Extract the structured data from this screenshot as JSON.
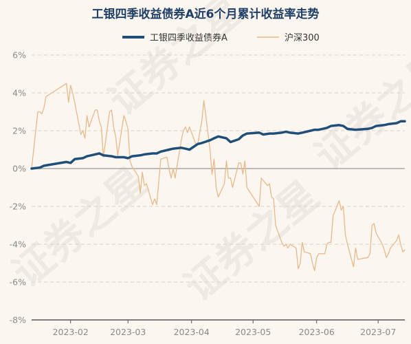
{
  "chart_data": {
    "type": "line",
    "title": "工银四季收益债券A近6个月累计收益率走势",
    "xlabel": "",
    "ylabel": "",
    "x_start": "2023-01-13",
    "x_end": "2023-07-14",
    "ylim": [
      -8,
      6
    ],
    "y_ticks": [
      6,
      4,
      2,
      0,
      -2,
      -4,
      -6,
      -8
    ],
    "y_tick_labels": [
      "6%",
      "4%",
      "2%",
      "0%",
      "-2%",
      "-4%",
      "-6%",
      "-8%"
    ],
    "x_ticks": [
      "2023-02-01",
      "2023-03-01",
      "2023-04-01",
      "2023-05-01",
      "2023-06-01",
      "2023-07-01"
    ],
    "x_tick_labels": [
      "2023-02",
      "2023-03",
      "2023-04",
      "2023-05",
      "2023-06",
      "2023-07"
    ],
    "grid": true,
    "legend": "top-center",
    "watermark": "证券之星",
    "series": [
      {
        "name": "工银四季收益债券A",
        "color": "#1f4e79",
        "x": [
          "2023-01-13",
          "2023-01-17",
          "2023-01-19",
          "2023-01-30",
          "2023-02-01",
          "2023-02-03",
          "2023-02-07",
          "2023-02-09",
          "2023-02-13",
          "2023-02-15",
          "2023-02-17",
          "2023-02-21",
          "2023-02-23",
          "2023-02-27",
          "2023-03-01",
          "2023-03-03",
          "2023-03-07",
          "2023-03-09",
          "2023-03-13",
          "2023-03-15",
          "2023-03-17",
          "2023-03-21",
          "2023-03-23",
          "2023-03-27",
          "2023-03-29",
          "2023-03-31",
          "2023-04-04",
          "2023-04-06",
          "2023-04-10",
          "2023-04-12",
          "2023-04-14",
          "2023-04-18",
          "2023-04-20",
          "2023-04-24",
          "2023-04-26",
          "2023-04-28",
          "2023-05-04",
          "2023-05-06",
          "2023-05-09",
          "2023-05-11",
          "2023-05-15",
          "2023-05-17",
          "2023-05-19",
          "2023-05-23",
          "2023-05-25",
          "2023-05-29",
          "2023-05-31",
          "2023-06-02",
          "2023-06-06",
          "2023-06-08",
          "2023-06-12",
          "2023-06-14",
          "2023-06-16",
          "2023-06-20",
          "2023-06-26",
          "2023-06-28",
          "2023-06-30",
          "2023-07-04",
          "2023-07-06",
          "2023-07-10",
          "2023-07-12",
          "2023-07-14"
        ],
        "values": [
          0.0,
          0.05,
          0.15,
          0.35,
          0.3,
          0.5,
          0.55,
          0.65,
          0.75,
          0.8,
          0.7,
          0.65,
          0.6,
          0.6,
          0.55,
          0.65,
          0.7,
          0.75,
          0.8,
          0.8,
          0.9,
          1.0,
          1.05,
          1.1,
          1.05,
          1.0,
          1.3,
          1.35,
          1.5,
          1.6,
          1.7,
          1.6,
          1.4,
          1.55,
          1.75,
          1.85,
          1.9,
          1.8,
          1.85,
          1.85,
          1.9,
          1.95,
          1.9,
          1.85,
          1.9,
          2.0,
          2.05,
          2.05,
          2.15,
          2.25,
          2.3,
          2.25,
          2.1,
          2.05,
          2.1,
          2.15,
          2.25,
          2.3,
          2.35,
          2.4,
          2.5,
          2.5
        ]
      },
      {
        "name": "沪深300",
        "color": "#e8b98a",
        "x": [
          "2023-01-13",
          "2023-01-16",
          "2023-01-17",
          "2023-01-18",
          "2023-01-19",
          "2023-01-20",
          "2023-01-30",
          "2023-01-31",
          "2023-02-01",
          "2023-02-02",
          "2023-02-03",
          "2023-02-06",
          "2023-02-07",
          "2023-02-08",
          "2023-02-09",
          "2023-02-10",
          "2023-02-13",
          "2023-02-14",
          "2023-02-15",
          "2023-02-16",
          "2023-02-17",
          "2023-02-20",
          "2023-02-21",
          "2023-02-22",
          "2023-02-23",
          "2023-02-24",
          "2023-02-27",
          "2023-02-28",
          "2023-03-01",
          "2023-03-02",
          "2023-03-03",
          "2023-03-06",
          "2023-03-07",
          "2023-03-08",
          "2023-03-09",
          "2023-03-10",
          "2023-03-13",
          "2023-03-14",
          "2023-03-15",
          "2023-03-16",
          "2023-03-17",
          "2023-03-20",
          "2023-03-21",
          "2023-03-22",
          "2023-03-23",
          "2023-03-24",
          "2023-03-27",
          "2023-03-28",
          "2023-03-29",
          "2023-03-30",
          "2023-03-31",
          "2023-04-03",
          "2023-04-04",
          "2023-04-06",
          "2023-04-07",
          "2023-04-10",
          "2023-04-11",
          "2023-04-12",
          "2023-04-13",
          "2023-04-14",
          "2023-04-17",
          "2023-04-18",
          "2023-04-19",
          "2023-04-20",
          "2023-04-21",
          "2023-04-24",
          "2023-04-25",
          "2023-04-26",
          "2023-04-27",
          "2023-04-28",
          "2023-05-04",
          "2023-05-05",
          "2023-05-08",
          "2023-05-09",
          "2023-05-10",
          "2023-05-11",
          "2023-05-12",
          "2023-05-15",
          "2023-05-16",
          "2023-05-17",
          "2023-05-18",
          "2023-05-19",
          "2023-05-22",
          "2023-05-23",
          "2023-05-24",
          "2023-05-25",
          "2023-05-26",
          "2023-05-29",
          "2023-05-30",
          "2023-05-31",
          "2023-06-01",
          "2023-06-02",
          "2023-06-05",
          "2023-06-06",
          "2023-06-07",
          "2023-06-08",
          "2023-06-09",
          "2023-06-12",
          "2023-06-13",
          "2023-06-14",
          "2023-06-15",
          "2023-06-16",
          "2023-06-19",
          "2023-06-20",
          "2023-06-21",
          "2023-06-26",
          "2023-06-27",
          "2023-06-28",
          "2023-06-29",
          "2023-06-30",
          "2023-07-03",
          "2023-07-04",
          "2023-07-05",
          "2023-07-06",
          "2023-07-07",
          "2023-07-10",
          "2023-07-11",
          "2023-07-12",
          "2023-07-13",
          "2023-07-14"
        ],
        "values": [
          0.0,
          3.0,
          3.0,
          2.9,
          3.2,
          3.8,
          4.5,
          3.5,
          4.4,
          4.0,
          3.5,
          1.8,
          2.0,
          1.6,
          2.8,
          2.2,
          3.1,
          3.1,
          2.5,
          2.2,
          0.6,
          3.0,
          3.1,
          2.2,
          1.7,
          0.7,
          2.8,
          2.5,
          2.1,
          0.4,
          0.1,
          -0.4,
          -1.3,
          -0.2,
          -0.9,
          -0.8,
          -1.9,
          -1.6,
          -1.9,
          -0.7,
          0.5,
          0.6,
          0.0,
          -0.5,
          0.0,
          -0.5,
          1.5,
          2.0,
          2.2,
          1.9,
          2.2,
          1.3,
          1.3,
          2.5,
          3.6,
          1.0,
          -0.3,
          0.5,
          -1.0,
          -1.5,
          -0.8,
          0.4,
          -0.5,
          -0.5,
          -1.0,
          0.3,
          0.3,
          -0.3,
          0.4,
          -1.0,
          -2.0,
          -0.5,
          -0.9,
          -0.8,
          -1.5,
          -1.6,
          -3.0,
          -3.9,
          -4.1,
          -4.0,
          -4.2,
          -4.0,
          -4.2,
          -5.3,
          -5.0,
          -3.9,
          -4.4,
          -4.5,
          -5.0,
          -5.4,
          -4.7,
          -4.5,
          -4.5,
          -4.0,
          -3.9,
          -3.9,
          -2.5,
          -1.7,
          -2.2,
          -2.0,
          -3.5,
          -4.0,
          -5.2,
          -4.2,
          -4.8,
          -4.7,
          -4.5,
          -3.0,
          -2.9,
          -3.4,
          -4.0,
          -4.3,
          -4.7,
          -4.5,
          -4.2,
          -3.8,
          -3.5,
          -4.0,
          -4.4,
          -4.3
        ]
      }
    ]
  }
}
